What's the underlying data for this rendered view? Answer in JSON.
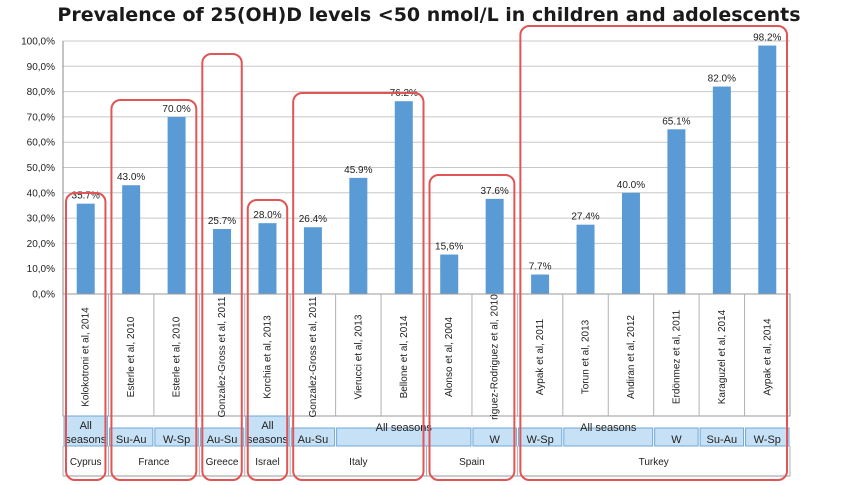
{
  "chart_data": {
    "type": "bar",
    "title": "Prevalence of 25(OH)D levels <50 nmol/L in children and adolescents",
    "ylim": [
      0,
      100
    ],
    "y_ticks": [
      "0,0%",
      "10,0%",
      "20,0%",
      "30,0%",
      "40,0%",
      "50,0%",
      "60,0%",
      "70,0%",
      "80,0%",
      "90,0%",
      "100,0%"
    ],
    "grid": true,
    "colors": {
      "bar": "#5b9bd5",
      "group_box": "#e05555",
      "season_fill": "#c6e0f5",
      "season_border": "#6fa8d6"
    },
    "categories": [
      "Kolokotroni et al, 2014",
      "Esterle et al, 2010",
      "Esterle et al, 2010",
      "Gonzalez-Gross et al, 2011",
      "Korchia et al, 2013",
      "Gonzalez-Gross et al, 2011",
      "Vierucci et al, 2013",
      "Bellone et al, 2014",
      "Alonso et al, 2004",
      "riguez-Rodriguez et al, 2010",
      "Aypak et al, 2011",
      "Torun et al, 2013",
      "Andiran et al, 2012",
      "Erdönmez et al, 2011",
      "Karaguzel et al, 2014",
      "Aypak et al, 2014"
    ],
    "values": [
      35.7,
      43.0,
      70.0,
      25.7,
      28.0,
      26.4,
      45.9,
      76.2,
      15.6,
      37.6,
      7.7,
      27.4,
      40.0,
      65.1,
      82.0,
      98.2
    ],
    "data_labels": [
      "35.7%",
      "43.0%",
      "70.0%",
      "25.7%",
      "28.0%",
      "26.4%",
      "45.9%",
      "76.2%",
      "15,6%",
      "37.6%",
      "7.7%",
      "27.4%",
      "40.0%",
      "65.1%",
      "82.0%",
      "98.2%"
    ],
    "seasons": [
      {
        "label": "All seasons",
        "lines": [
          "All",
          "seasons"
        ],
        "start": 0,
        "end": 0
      },
      {
        "label": "Su-Au",
        "lines": [
          "Su-Au"
        ],
        "start": 1,
        "end": 1
      },
      {
        "label": "W-Sp",
        "lines": [
          "W-Sp"
        ],
        "start": 2,
        "end": 2
      },
      {
        "label": "Au-Su",
        "lines": [
          "Au-Su"
        ],
        "start": 3,
        "end": 3
      },
      {
        "label": "All seasons",
        "lines": [
          "All",
          "seasons"
        ],
        "start": 4,
        "end": 4
      },
      {
        "label": "Au-Su",
        "lines": [
          "Au-Su"
        ],
        "start": 5,
        "end": 5
      },
      {
        "label": "All seasons",
        "lines": [
          "All seasons"
        ],
        "start": 6,
        "end": 8
      },
      {
        "label": "W",
        "lines": [
          "W"
        ],
        "start": 9,
        "end": 9
      },
      {
        "label": "W-Sp",
        "lines": [
          "W-Sp"
        ],
        "start": 10,
        "end": 10
      },
      {
        "label": "All seasons",
        "lines": [
          "All seasons"
        ],
        "start": 11,
        "end": 12
      },
      {
        "label": "W",
        "lines": [
          "W"
        ],
        "start": 13,
        "end": 13
      },
      {
        "label": "Su-Au",
        "lines": [
          "Su-Au"
        ],
        "start": 14,
        "end": 14
      },
      {
        "label": "W-Sp",
        "lines": [
          "W-Sp"
        ],
        "start": 15,
        "end": 15
      }
    ],
    "countries": [
      {
        "name": "Cyprus",
        "start": 0,
        "end": 0
      },
      {
        "name": "France",
        "start": 1,
        "end": 2
      },
      {
        "name": "Greece",
        "start": 3,
        "end": 3
      },
      {
        "name": "Israel",
        "start": 4,
        "end": 4
      },
      {
        "name": "Italy",
        "start": 5,
        "end": 7
      },
      {
        "name": "Spain",
        "start": 8,
        "end": 9
      },
      {
        "name": "Turkey",
        "start": 10,
        "end": 15
      }
    ]
  }
}
